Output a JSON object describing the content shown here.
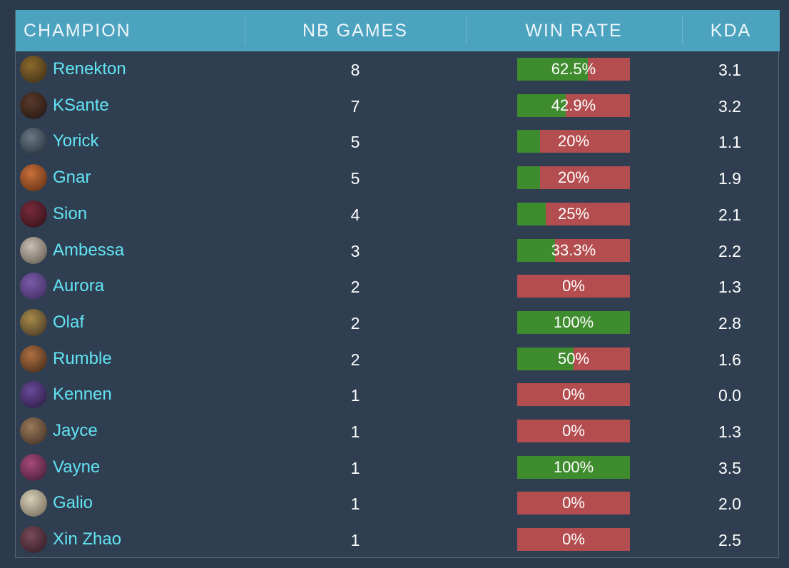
{
  "header": {
    "columns": [
      "CHAMPION",
      "NB GAMES",
      "WIN RATE",
      "KDA"
    ]
  },
  "table": {
    "rows": [
      {
        "champion": "Renekton",
        "games": 8,
        "win_rate": {
          "value": 62.5,
          "label": "62.5%"
        },
        "kda": "3.1"
      },
      {
        "champion": "KSante",
        "games": 7,
        "win_rate": {
          "value": 42.9,
          "label": "42.9%"
        },
        "kda": "3.2"
      },
      {
        "champion": "Yorick",
        "games": 5,
        "win_rate": {
          "value": 20,
          "label": "20%"
        },
        "kda": "1.1"
      },
      {
        "champion": "Gnar",
        "games": 5,
        "win_rate": {
          "value": 20,
          "label": "20%"
        },
        "kda": "1.9"
      },
      {
        "champion": "Sion",
        "games": 4,
        "win_rate": {
          "value": 25,
          "label": "25%"
        },
        "kda": "2.1"
      },
      {
        "champion": "Ambessa",
        "games": 3,
        "win_rate": {
          "value": 33.3,
          "label": "33.3%"
        },
        "kda": "2.2"
      },
      {
        "champion": "Aurora",
        "games": 2,
        "win_rate": {
          "value": 0,
          "label": "0%"
        },
        "kda": "1.3"
      },
      {
        "champion": "Olaf",
        "games": 2,
        "win_rate": {
          "value": 100,
          "label": "100%"
        },
        "kda": "2.8"
      },
      {
        "champion": "Rumble",
        "games": 2,
        "win_rate": {
          "value": 50,
          "label": "50%"
        },
        "kda": "1.6"
      },
      {
        "champion": "Kennen",
        "games": 1,
        "win_rate": {
          "value": 0,
          "label": "0%"
        },
        "kda": "0.0"
      },
      {
        "champion": "Jayce",
        "games": 1,
        "win_rate": {
          "value": 0,
          "label": "0%"
        },
        "kda": "1.3"
      },
      {
        "champion": "Vayne",
        "games": 1,
        "win_rate": {
          "value": 100,
          "label": "100%"
        },
        "kda": "3.5"
      },
      {
        "champion": "Galio",
        "games": 1,
        "win_rate": {
          "value": 0,
          "label": "0%"
        },
        "kda": "2.0"
      },
      {
        "champion": "Xin Zhao",
        "games": 1,
        "win_rate": {
          "value": 0,
          "label": "0%"
        },
        "kda": "2.5"
      }
    ]
  }
}
